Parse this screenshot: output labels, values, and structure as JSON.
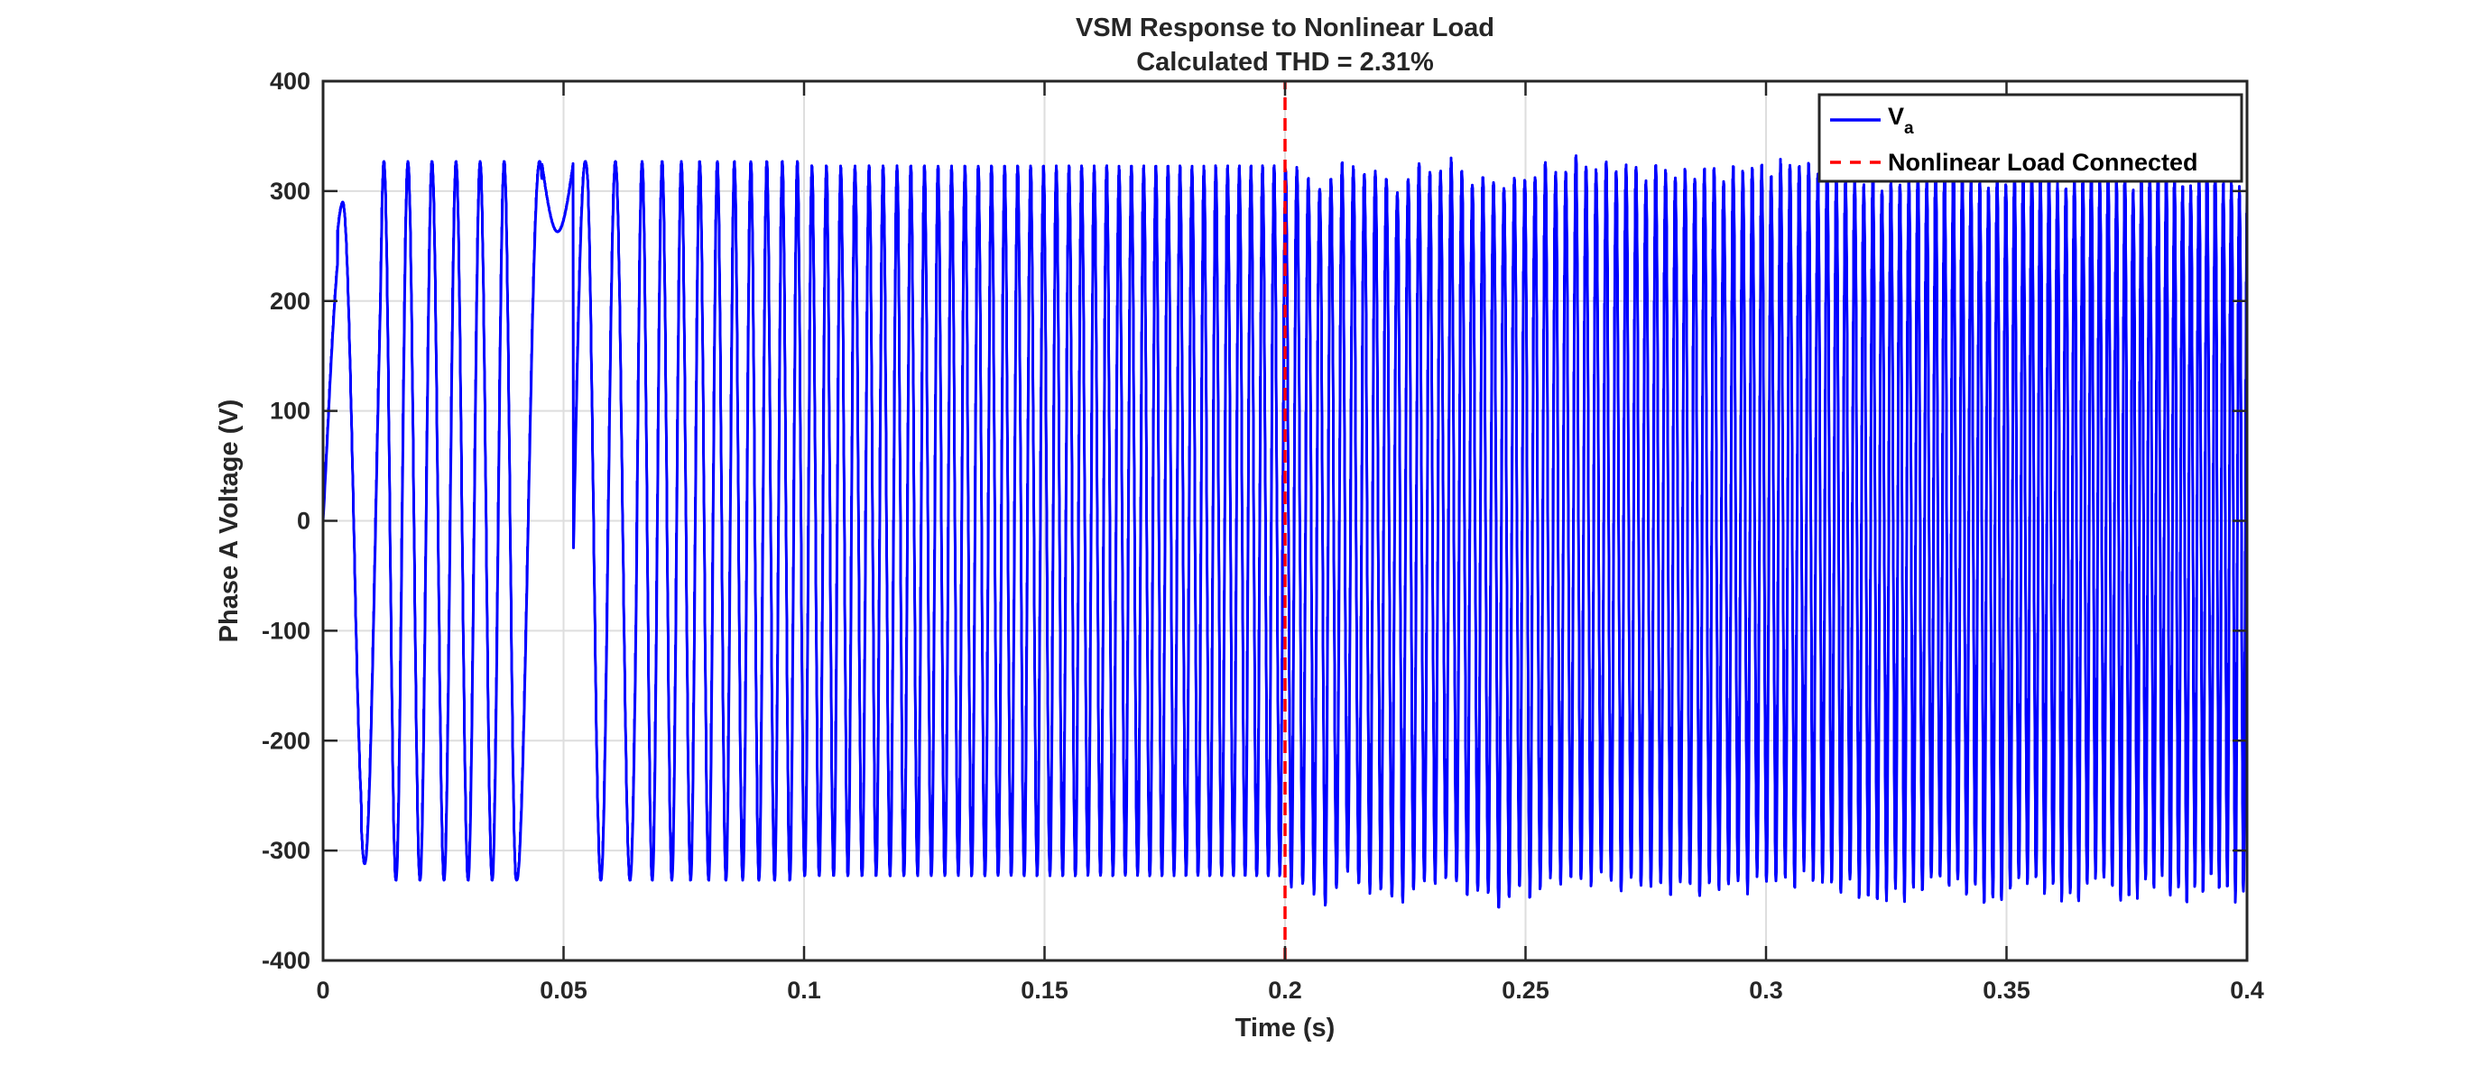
{
  "chart_data": {
    "type": "line",
    "title": "VSM Response to Nonlinear Load",
    "subtitle": "Calculated THD = 2.31%",
    "xlabel": "Time (s)",
    "ylabel": "Phase A Voltage (V)",
    "xlim": [
      0,
      0.4
    ],
    "ylim": [
      -400,
      400
    ],
    "x_ticks": [
      0,
      0.05,
      0.1,
      0.15,
      0.2,
      0.25,
      0.3,
      0.35,
      0.4
    ],
    "x_tick_labels": [
      "0",
      "0.05",
      "0.1",
      "0.15",
      "0.2",
      "0.25",
      "0.3",
      "0.35",
      "0.4"
    ],
    "y_ticks": [
      -400,
      -300,
      -200,
      -100,
      0,
      100,
      200,
      300,
      400
    ],
    "y_tick_labels": [
      "-400",
      "-300",
      "-200",
      "-100",
      "0",
      "100",
      "200",
      "300",
      "400"
    ],
    "grid": true,
    "legend_position": "top-right",
    "series": [
      {
        "name": "V",
        "name_subscript": "a",
        "color": "#0000ff",
        "style": "solid",
        "description_points": {
          "startup_peaks": [
            [
              0.0,
              0
            ],
            [
              0.0005,
              230
            ],
            [
              0.005,
              -282
            ],
            [
              0.0075,
              303
            ],
            [
              0.0105,
              -312
            ],
            [
              0.0125,
              322
            ],
            [
              0.0165,
              326
            ],
            [
              0.0205,
              326
            ],
            [
              0.0245,
              327
            ],
            [
              0.0295,
              327
            ],
            [
              0.0345,
              327
            ],
            [
              0.0385,
              -324
            ],
            [
              0.0445,
              325
            ],
            [
              0.049,
              263
            ],
            [
              0.0535,
              326
            ],
            [
              0.0595,
              -325
            ],
            [
              0.0635,
              327
            ]
          ],
          "amplitude_after_startup": 327,
          "amplitude_before_load": 323,
          "amplitude_after_load_min": 305,
          "amplitude_after_load_max": 345
        }
      },
      {
        "name": "Nonlinear Load Connected",
        "color": "#ff0000",
        "style": "dashed",
        "x": [
          0.2,
          0.2
        ],
        "y": [
          -400,
          400
        ]
      }
    ]
  },
  "colors": {
    "signal": "#0000ff",
    "event_line": "#ff0000",
    "grid": "#dedede",
    "axis": "#262626"
  }
}
